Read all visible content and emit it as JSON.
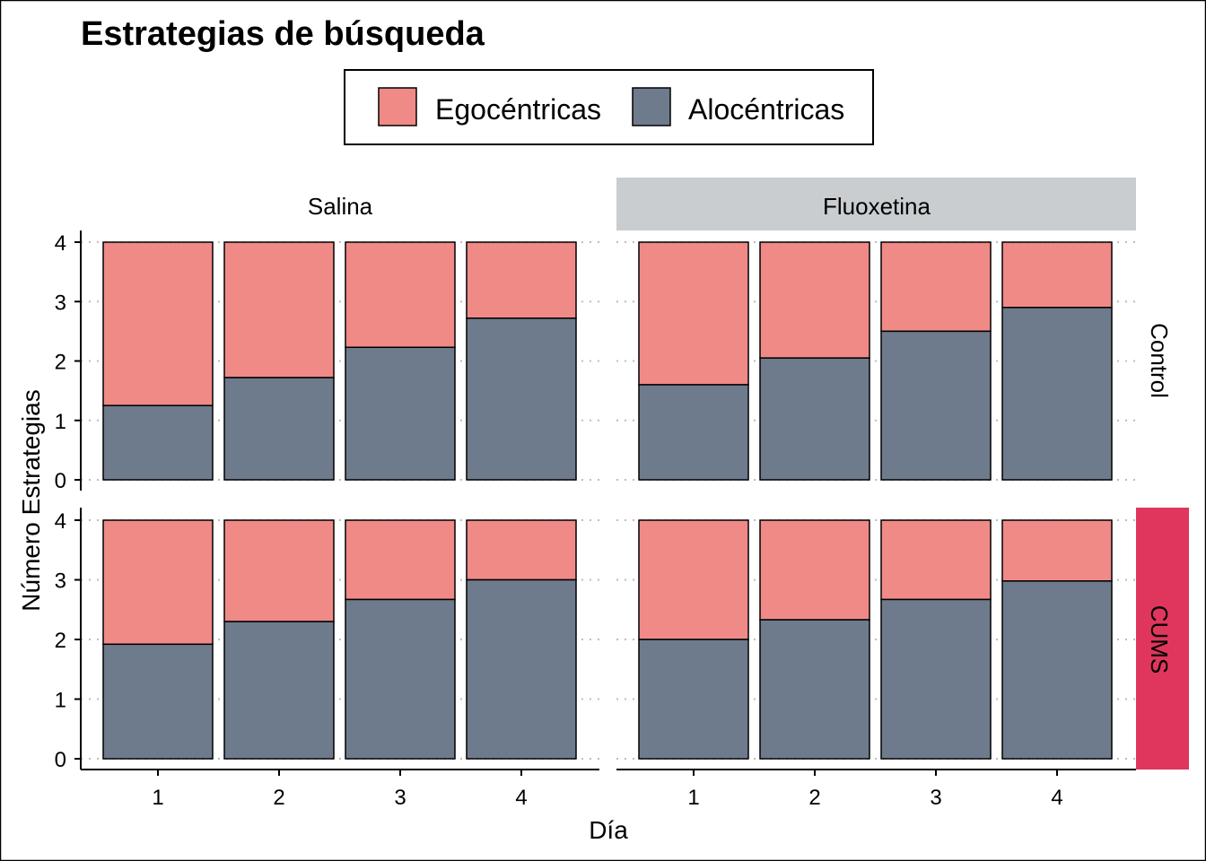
{
  "chart_data": {
    "type": "bar",
    "stacked": true,
    "title": "Estrategias de búsqueda",
    "xlabel": "Día",
    "ylabel": "Número Estrategias",
    "ylim": [
      0,
      4
    ],
    "yticks": [
      "0",
      "1",
      "2",
      "3",
      "4"
    ],
    "categories": [
      "1",
      "2",
      "3",
      "4"
    ],
    "grid": "horizontal dotted",
    "legend": {
      "position": "top",
      "entries": [
        {
          "label": "Egocéntricas",
          "color": "#F08A87"
        },
        {
          "label": "Alocéntricas",
          "color": "#6E7B8D"
        }
      ]
    },
    "colors": {
      "egocentricas": "#F08A87",
      "alocentricas": "#6E7B8D",
      "strip_fluoxetina": "#C9CDD0",
      "strip_cums": "#E0365D"
    },
    "columns": [
      "Salina",
      "Fluoxetina"
    ],
    "rows": [
      "Control",
      "CUMS"
    ],
    "panels": [
      {
        "column": "Salina",
        "row": "Control",
        "series": [
          {
            "name": "Alocéntricas",
            "values": [
              1.25,
              1.72,
              2.23,
              2.72
            ]
          },
          {
            "name": "Egocéntricas",
            "values": [
              2.75,
              2.28,
              1.77,
              1.28
            ]
          }
        ]
      },
      {
        "column": "Fluoxetina",
        "row": "Control",
        "series": [
          {
            "name": "Alocéntricas",
            "values": [
              1.6,
              2.05,
              2.5,
              2.9
            ]
          },
          {
            "name": "Egocéntricas",
            "values": [
              2.4,
              1.95,
              1.5,
              1.1
            ]
          }
        ]
      },
      {
        "column": "Salina",
        "row": "CUMS",
        "series": [
          {
            "name": "Alocéntricas",
            "values": [
              1.92,
              2.3,
              2.67,
              3.0
            ]
          },
          {
            "name": "Egocéntricas",
            "values": [
              2.08,
              1.7,
              1.33,
              1.0
            ]
          }
        ]
      },
      {
        "column": "Fluoxetina",
        "row": "CUMS",
        "series": [
          {
            "name": "Alocéntricas",
            "values": [
              2.0,
              2.33,
              2.67,
              2.98
            ]
          },
          {
            "name": "Egocéntricas",
            "values": [
              2.0,
              1.67,
              1.33,
              1.02
            ]
          }
        ]
      }
    ]
  }
}
